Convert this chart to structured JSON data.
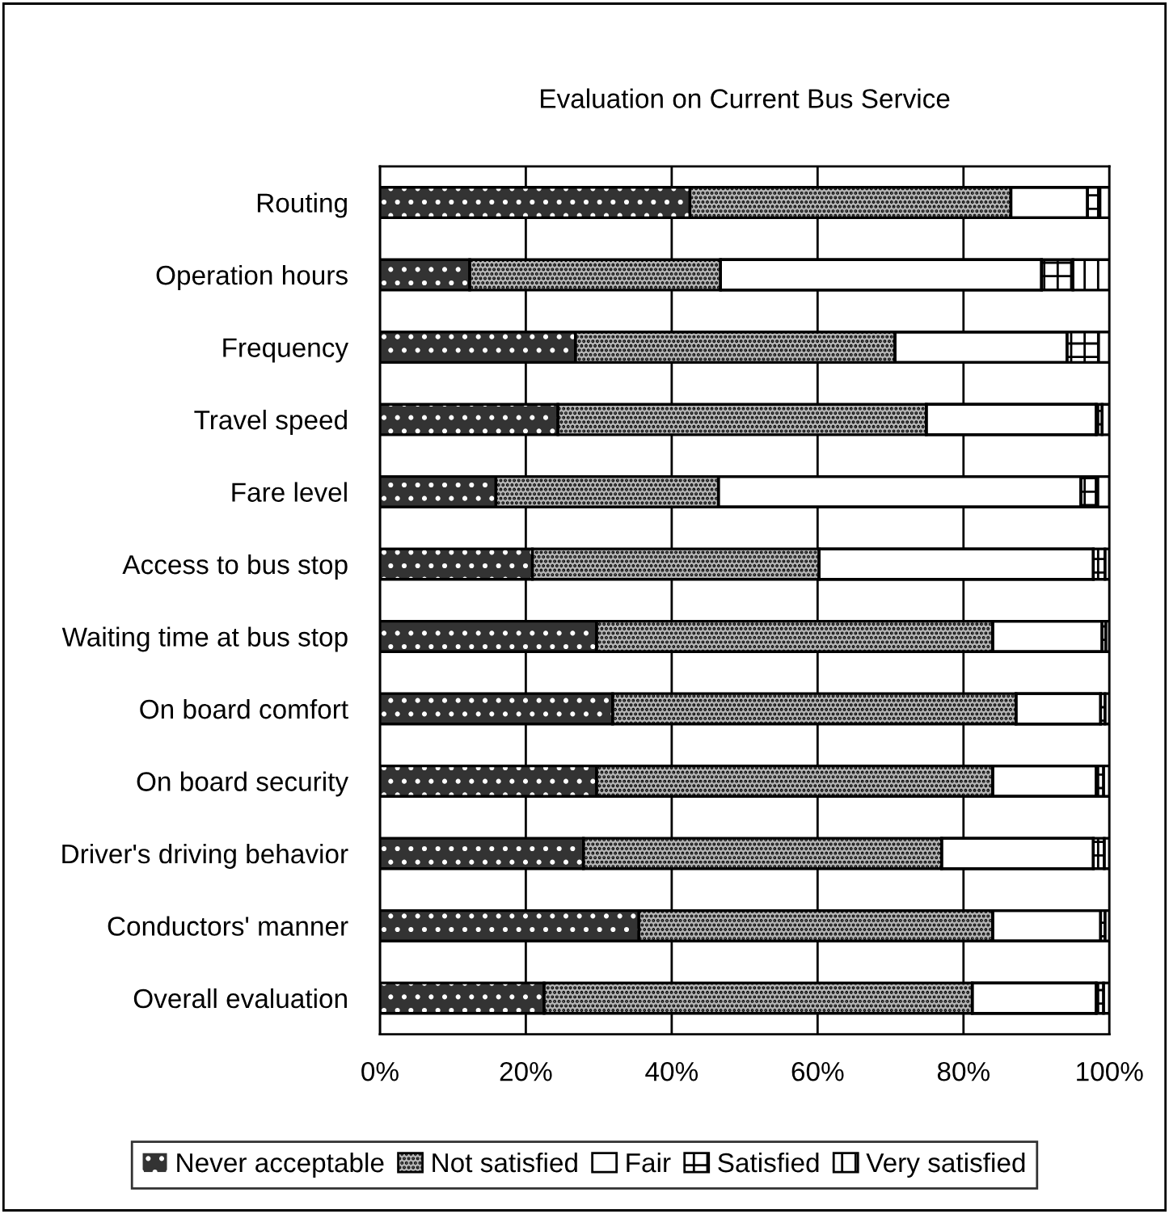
{
  "chart_data": {
    "type": "bar",
    "orientation": "horizontal",
    "stacked": true,
    "title": "Evaluation on Current Bus Service",
    "categories": [
      "Routing",
      "Operation hours",
      "Frequency",
      "Travel speed",
      "Fare level",
      "Access to bus stop",
      "Waiting time at bus stop",
      "On board comfort",
      "On board security",
      "Driver's driving behavior",
      "Conductors' manner",
      "Overall evaluation"
    ],
    "series": [
      {
        "name": "Never acceptable",
        "color": "#333333",
        "values": [
          42.5,
          12.3,
          26.8,
          24.4,
          15.9,
          20.9,
          29.7,
          31.9,
          29.7,
          27.9,
          35.5,
          22.5
        ]
      },
      {
        "name": "Not satisfied",
        "color": "#b4b4b4",
        "values": [
          44.0,
          34.4,
          43.8,
          50.5,
          30.5,
          39.3,
          54.3,
          55.3,
          54.3,
          49.1,
          48.5,
          58.7
        ]
      },
      {
        "name": "Fair",
        "color": "#ffffff",
        "values": [
          10.5,
          44.0,
          23.6,
          23.3,
          49.7,
          37.6,
          15.0,
          11.6,
          14.2,
          20.8,
          14.8,
          17.0
        ]
      },
      {
        "name": "Satisfied",
        "color": "#ffffff",
        "values": [
          1.7,
          4.3,
          4.3,
          0.8,
          2.1,
          1.6,
          0.5,
          0.6,
          1.0,
          1.5,
          0.6,
          1.0
        ]
      },
      {
        "name": "Very satisfied",
        "color": "#ffffff",
        "values": [
          1.3,
          5.0,
          1.5,
          1.0,
          1.8,
          0.6,
          0.5,
          0.6,
          0.8,
          0.7,
          0.6,
          0.8
        ]
      }
    ],
    "xlim": [
      0,
      100
    ],
    "xticks": [
      {
        "value": 0,
        "label": "0%"
      },
      {
        "value": 20,
        "label": "20%"
      },
      {
        "value": 40,
        "label": "40%"
      },
      {
        "value": 60,
        "label": "60%"
      },
      {
        "value": 80,
        "label": "80%"
      },
      {
        "value": 100,
        "label": "100%"
      }
    ],
    "grid": "x",
    "legend": "bottom"
  }
}
